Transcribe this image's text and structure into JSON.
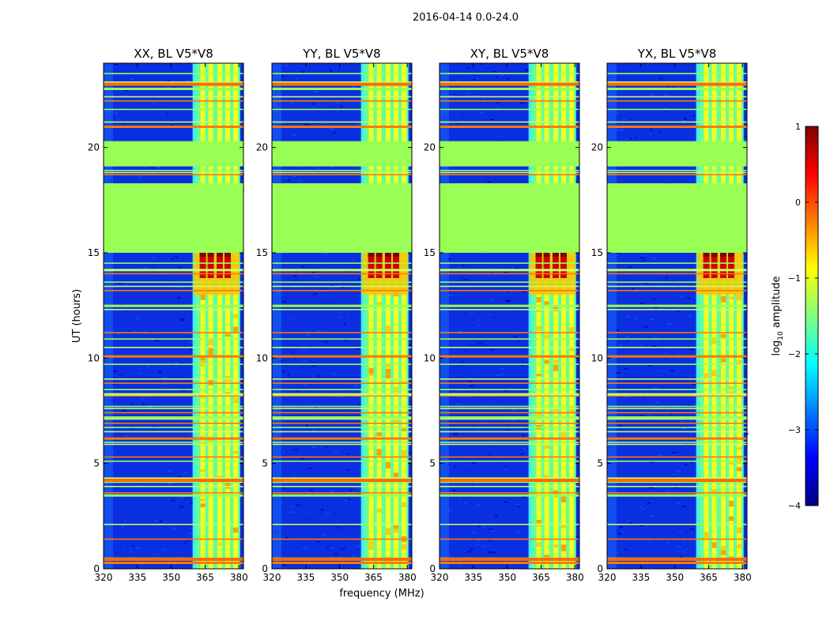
{
  "chart_data": {
    "type": "heatmap",
    "title": "2016-04-14 0.0-24.0",
    "xlabel": "frequency (MHz)",
    "ylabel": "UT (hours)",
    "xlim": [
      320,
      382
    ],
    "ylim": [
      0,
      24
    ],
    "xticks": [
      320,
      335,
      350,
      365,
      380
    ],
    "yticks": [
      0,
      5,
      10,
      15,
      20
    ],
    "panels": [
      {
        "title": "XX, BL V5*V8"
      },
      {
        "title": "YY, BL V5*V8"
      },
      {
        "title": "XY, BL V5*V8"
      },
      {
        "title": "YX, BL V5*V8"
      }
    ],
    "flagged_ut_ranges": [
      [
        15.0,
        18.3
      ],
      [
        19.1,
        20.3
      ]
    ],
    "rfi_band_mhz": [
      359.5,
      380.5
    ],
    "rfi_channels_mhz": [
      364,
      367.5,
      371.5,
      375,
      378.5
    ],
    "strong_rfi_ut_range": [
      13.0,
      15.0
    ],
    "flag_lines_ut": [
      0.3,
      0.4,
      0.5,
      1.4,
      2.1,
      3.5,
      3.6,
      3.9,
      4.1,
      4.2,
      4.3,
      5.1,
      5.3,
      5.9,
      6.0,
      6.2,
      6.5,
      6.7,
      6.9,
      7.1,
      7.2,
      7.4,
      7.6,
      7.7,
      8.2,
      8.3,
      8.5,
      8.8,
      9.0,
      9.7,
      10.1,
      10.5,
      10.9,
      11.2,
      12.3,
      12.5,
      13.2,
      13.4,
      13.6,
      14.0,
      14.2,
      14.5,
      18.7,
      18.8,
      18.9,
      21.0,
      21.2,
      21.8,
      22.2,
      22.4,
      22.8,
      23.0,
      23.1,
      23.5
    ],
    "colorbar": {
      "label": "log10 amplitude",
      "label_base": "log",
      "label_sub": "10",
      "label_rest": " amplitude",
      "range": [
        -4,
        1
      ],
      "ticks": [
        1,
        0,
        -1,
        -2,
        -3,
        -4
      ],
      "tick_labels": [
        "1",
        "0",
        "−1",
        "−2",
        "−3",
        "−4"
      ],
      "colormap": "jet",
      "colormap_stops": [
        "#00007f",
        "#0000ff",
        "#007fff",
        "#00ffff",
        "#7fff7f",
        "#ffff00",
        "#ff7f00",
        "#ff0000",
        "#7f0000"
      ],
      "flag_color": "#99ff55"
    }
  }
}
